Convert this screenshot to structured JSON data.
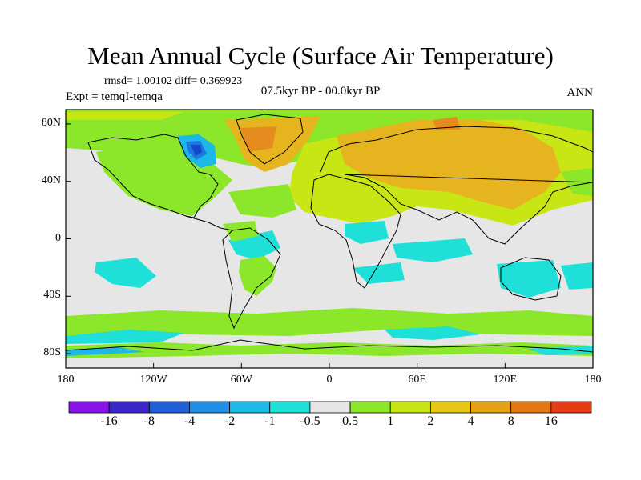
{
  "title": "Mean Annual Cycle (Surface Air Temperature)",
  "stats": "rmsd= 1.00102 diff= 0.369923",
  "expt": "Expt = temqI-temqa",
  "period": "07.5kyr BP - 00.0kyr BP",
  "season": "ANN",
  "map": {
    "lat_labels": [
      {
        "text": "80N",
        "lat": 80
      },
      {
        "text": "40N",
        "lat": 40
      },
      {
        "text": "0",
        "lat": 0
      },
      {
        "text": "40S",
        "lat": -40
      },
      {
        "text": "80S",
        "lat": -80
      }
    ],
    "lon_labels": [
      {
        "text": "180",
        "lon": -180
      },
      {
        "text": "120W",
        "lon": -120
      },
      {
        "text": "60W",
        "lon": -60
      },
      {
        "text": "0",
        "lon": 0
      },
      {
        "text": "60E",
        "lon": 60
      },
      {
        "text": "120E",
        "lon": 120
      },
      {
        "text": "180",
        "lon": 180
      }
    ]
  },
  "colorbar": {
    "labels": [
      "-16",
      "-8",
      "-4",
      "-2",
      "-1",
      "-0.5",
      "0.5",
      "1",
      "2",
      "4",
      "8",
      "16"
    ],
    "colors": [
      "#8a14e8",
      "#3c28c8",
      "#1f5fd8",
      "#1e90e8",
      "#1cb8e8",
      "#1ee0d8",
      "#e6e6e6",
      "#8ce62a",
      "#c8e614",
      "#e6c814",
      "#e6a014",
      "#e67814",
      "#e63c14"
    ]
  },
  "colors": {
    "neutral": "#e6e6e6",
    "c1": "#8ce62a",
    "c2": "#c8e614",
    "c4": "#e6b41e",
    "c8": "#e68c1e",
    "cm1": "#1ee0d8",
    "cm2": "#1cb8e8",
    "cm4": "#1e78e0",
    "cm8": "#1446c8"
  }
}
